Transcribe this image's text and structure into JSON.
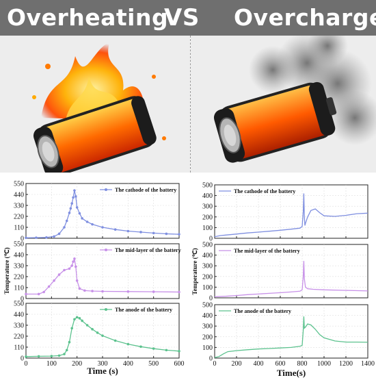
{
  "header": {
    "left_title": "Overheating",
    "vs_label": "VS",
    "right_title": "Overcharge"
  },
  "illustrations": {
    "left": "battery-on-fire",
    "right": "battery-smoking"
  },
  "colors": {
    "banner": "#6f6f6f",
    "cathode": "#7f8fe0",
    "mid_layer": "#c790e8",
    "anode": "#5cc28e"
  },
  "chart_data": [
    {
      "type": "line",
      "panel": "overheating",
      "xlabel": "Time (s)",
      "ylabel": "Temperature (℃)",
      "xlim": [
        0,
        600
      ],
      "xticks": [
        0,
        100,
        200,
        300,
        400,
        500,
        600
      ],
      "ylim": [
        0,
        550
      ],
      "yticks": [
        0,
        110,
        220,
        330,
        440,
        550
      ],
      "grid": true,
      "series": [
        {
          "name": "The  cathode of the battery",
          "color": "#7f8fe0",
          "x": [
            0,
            40,
            80,
            110,
            130,
            150,
            160,
            170,
            175,
            180,
            185,
            190,
            195,
            200,
            210,
            220,
            240,
            260,
            300,
            350,
            400,
            450,
            500,
            550,
            600
          ],
          "y": [
            5,
            6,
            8,
            18,
            45,
            110,
            175,
            255,
            300,
            350,
            410,
            480,
            420,
            310,
            250,
            200,
            165,
            140,
            110,
            88,
            72,
            62,
            52,
            45,
            40
          ]
        },
        {
          "name": "The mid-layer of the battery",
          "color": "#c790e8",
          "x": [
            0,
            50,
            70,
            90,
            110,
            130,
            150,
            170,
            180,
            185,
            190,
            195,
            200,
            210,
            230,
            260,
            300,
            400,
            500,
            600
          ],
          "y": [
            45,
            45,
            65,
            120,
            180,
            240,
            285,
            300,
            330,
            370,
            400,
            320,
            180,
            100,
            80,
            75,
            72,
            70,
            68,
            65
          ]
        },
        {
          "name": "The anode of the battery",
          "color": "#5cc28e",
          "x": [
            0,
            50,
            100,
            130,
            150,
            160,
            170,
            180,
            190,
            200,
            210,
            220,
            240,
            260,
            280,
            300,
            350,
            400,
            450,
            500,
            550,
            600
          ],
          "y": [
            15,
            18,
            20,
            25,
            40,
            80,
            160,
            300,
            390,
            410,
            400,
            375,
            330,
            290,
            255,
            225,
            175,
            140,
            115,
            95,
            80,
            70
          ]
        }
      ]
    },
    {
      "type": "line",
      "panel": "overcharge",
      "xlabel": "Time(s)",
      "ylabel": "Temperature (℃)",
      "xlim": [
        0,
        1400
      ],
      "xticks": [
        0,
        200,
        400,
        600,
        800,
        1000,
        1200,
        1400
      ],
      "ylim": [
        0,
        500
      ],
      "yticks": [
        0,
        100,
        200,
        300,
        400,
        500
      ],
      "grid": true,
      "series": [
        {
          "name": "The cathode of the battery",
          "color": "#7f8fe0",
          "x": [
            0,
            50,
            100,
            200,
            300,
            400,
            500,
            600,
            700,
            780,
            800,
            810,
            815,
            820,
            825,
            830,
            850,
            880,
            920,
            960,
            1000,
            1100,
            1200,
            1300,
            1400
          ],
          "y": [
            15,
            25,
            30,
            40,
            50,
            58,
            66,
            75,
            85,
            95,
            110,
            250,
            420,
            200,
            120,
            140,
            200,
            260,
            275,
            240,
            210,
            205,
            215,
            230,
            235
          ]
        },
        {
          "name": "The mid-layer of the battery",
          "color": "#c790e8",
          "x": [
            0,
            100,
            200,
            300,
            400,
            500,
            600,
            700,
            780,
            800,
            810,
            815,
            820,
            830,
            850,
            900,
            1000,
            1200,
            1400
          ],
          "y": [
            10,
            15,
            22,
            30,
            36,
            42,
            48,
            55,
            62,
            75,
            200,
            345,
            180,
            100,
            85,
            80,
            75,
            70,
            65
          ]
        },
        {
          "name": "The anode of the battery",
          "color": "#5cc28e",
          "x": [
            0,
            40,
            80,
            120,
            200,
            300,
            400,
            500,
            600,
            700,
            780,
            800,
            810,
            815,
            820,
            830,
            850,
            880,
            920,
            960,
            1000,
            1100,
            1200,
            1300,
            1400
          ],
          "y": [
            5,
            15,
            40,
            60,
            70,
            78,
            85,
            90,
            95,
            100,
            110,
            120,
            260,
            390,
            280,
            290,
            320,
            310,
            270,
            220,
            190,
            160,
            150,
            150,
            148
          ]
        }
      ]
    }
  ]
}
